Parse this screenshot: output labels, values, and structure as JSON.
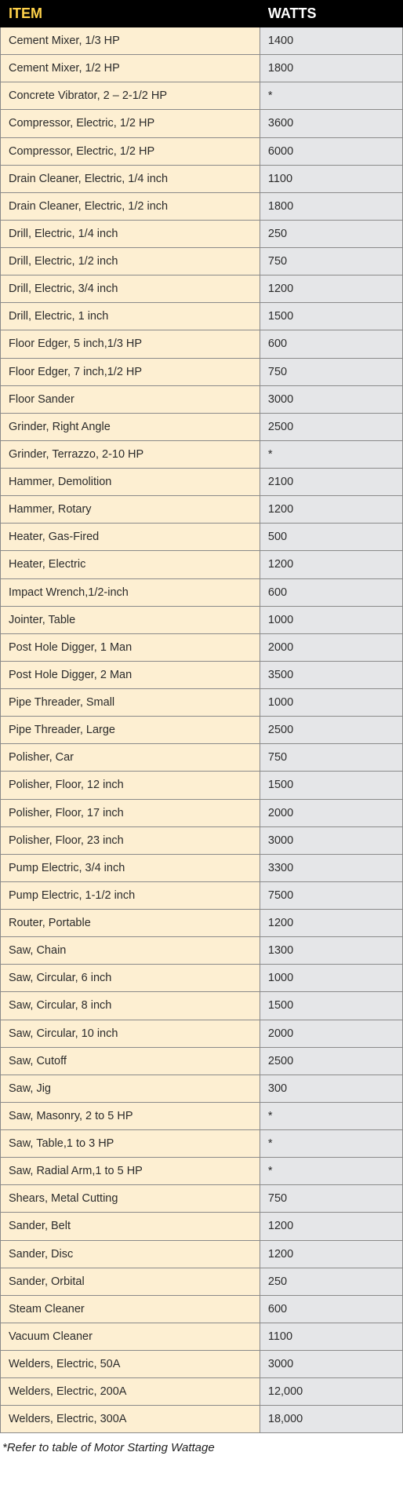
{
  "table": {
    "columns": [
      {
        "label": "ITEM",
        "class": "col-item"
      },
      {
        "label": "WATTS",
        "class": "col-watts"
      }
    ],
    "rows": [
      [
        "Cement Mixer, 1/3 HP",
        "1400"
      ],
      [
        "Cement Mixer, 1/2 HP",
        "1800"
      ],
      [
        "Concrete Vibrator, 2 – 2-1/2 HP",
        "*"
      ],
      [
        "Compressor, Electric, 1/2 HP",
        "3600"
      ],
      [
        "Compressor, Electric, 1/2 HP",
        "6000"
      ],
      [
        "Drain Cleaner, Electric, 1/4 inch",
        "1100"
      ],
      [
        "Drain Cleaner, Electric, 1/2 inch",
        "1800"
      ],
      [
        "Drill, Electric, 1/4 inch",
        "250"
      ],
      [
        "Drill, Electric, 1/2 inch",
        "750"
      ],
      [
        "Drill, Electric, 3/4 inch",
        "1200"
      ],
      [
        "Drill, Electric, 1 inch",
        "1500"
      ],
      [
        "Floor Edger, 5 inch,1/3 HP",
        "600"
      ],
      [
        "Floor Edger, 7 inch,1/2 HP",
        "750"
      ],
      [
        "Floor Sander",
        "3000"
      ],
      [
        "Grinder, Right Angle",
        "2500"
      ],
      [
        "Grinder, Terrazzo, 2-10 HP",
        "*"
      ],
      [
        "Hammer, Demolition",
        "2100"
      ],
      [
        "Hammer, Rotary",
        "1200"
      ],
      [
        "Heater, Gas-Fired",
        "500"
      ],
      [
        "Heater, Electric",
        "1200"
      ],
      [
        "Impact Wrench,1/2-inch",
        "600"
      ],
      [
        "Jointer, Table",
        "1000"
      ],
      [
        "Post Hole Digger, 1 Man",
        "2000"
      ],
      [
        "Post Hole Digger, 2 Man",
        "3500"
      ],
      [
        "Pipe Threader, Small",
        "1000"
      ],
      [
        "Pipe Threader, Large",
        "2500"
      ],
      [
        "Polisher, Car",
        "750"
      ],
      [
        "Polisher, Floor, 12 inch",
        "1500"
      ],
      [
        "Polisher, Floor, 17 inch",
        "2000"
      ],
      [
        "Polisher, Floor, 23 inch",
        "3000"
      ],
      [
        "Pump Electric, 3/4 inch",
        "3300"
      ],
      [
        "Pump Electric, 1-1/2 inch",
        "7500"
      ],
      [
        "Router, Portable",
        "1200"
      ],
      [
        "Saw, Chain",
        "1300"
      ],
      [
        "Saw, Circular, 6 inch",
        "1000"
      ],
      [
        "Saw, Circular, 8 inch",
        "1500"
      ],
      [
        "Saw, Circular, 10 inch",
        "2000"
      ],
      [
        "Saw, Cutoff",
        "2500"
      ],
      [
        "Saw, Jig",
        "300"
      ],
      [
        "Saw, Masonry, 2 to 5 HP",
        "*"
      ],
      [
        "Saw, Table,1 to 3 HP",
        "*"
      ],
      [
        "Saw, Radial Arm,1 to 5 HP",
        "*"
      ],
      [
        "Shears, Metal Cutting",
        "750"
      ],
      [
        "Sander, Belt",
        "1200"
      ],
      [
        "Sander, Disc",
        "1200"
      ],
      [
        "Sander, Orbital",
        "250"
      ],
      [
        "Steam Cleaner",
        "600"
      ],
      [
        "Vacuum Cleaner",
        "1100"
      ],
      [
        "Welders, Electric, 50A",
        "3000"
      ],
      [
        "Welders, Electric, 200A",
        "12,000"
      ],
      [
        "Welders, Electric, 300A",
        "18,000"
      ]
    ],
    "header_bg": "#000000",
    "header_item_color": "#ffd24a",
    "header_watts_color": "#ffffff",
    "item_cell_bg": "#fdefd2",
    "watts_cell_bg": "#e5e6e8",
    "border_color": "#8a8a8a",
    "text_color": "#2b2b2b",
    "header_fontsize": 18,
    "cell_fontsize": 14.5
  },
  "footnote": "*Refer to table of Motor Starting Wattage"
}
